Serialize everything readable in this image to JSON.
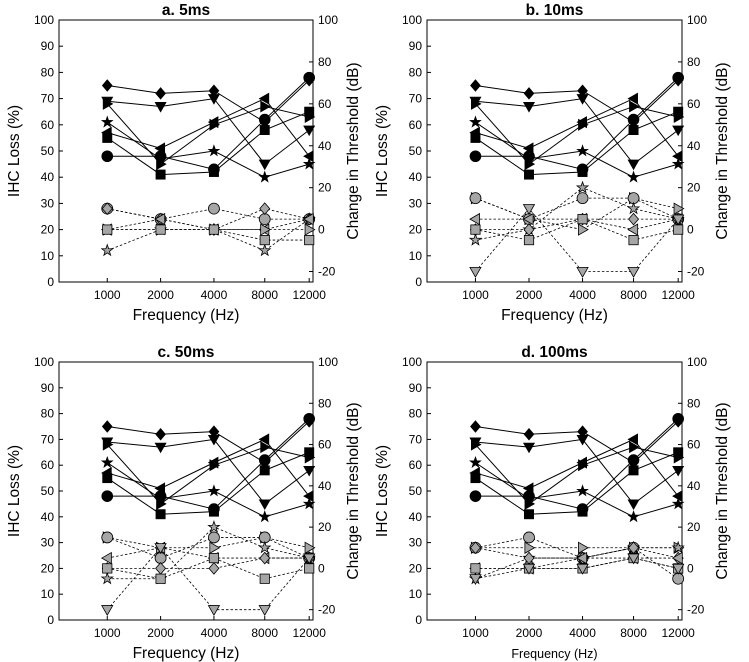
{
  "figure": {
    "y_ticks": [
      "0",
      "10",
      "20",
      "30",
      "40",
      "50",
      "60",
      "70",
      "80",
      "90",
      "100"
    ],
    "y2_ticks": [
      "-20",
      "0",
      "20",
      "40",
      "60",
      "80",
      "100"
    ],
    "x_ticks": [
      "1000",
      "2000",
      "4000",
      "8000",
      "12000"
    ],
    "y_label": "IHC Loss (%)",
    "y2_label": "Change in Threshold (dB)",
    "x_label": "Frequency (Hz)"
  },
  "chart_data": [
    {
      "type": "line",
      "title": "a. 5ms",
      "xlabel": "Frequency (Hz)",
      "ylabel": "IHC Loss (%)",
      "y2label": "Change in Threshold (dB)",
      "categories": [
        1000,
        2000,
        4000,
        8000,
        12000
      ],
      "ylim": [
        0,
        100
      ],
      "y2lim": [
        -25,
        100
      ],
      "series": [
        {
          "axis": "left",
          "marker": "diamond",
          "values": [
            75,
            72,
            73,
            61,
            77
          ]
        },
        {
          "axis": "left",
          "marker": "triangle-down",
          "values": [
            69,
            67,
            70,
            45,
            58
          ]
        },
        {
          "axis": "left",
          "marker": "star",
          "values": [
            61,
            47,
            50,
            40,
            45
          ]
        },
        {
          "axis": "left",
          "marker": "triangle-left",
          "values": [
            57,
            51,
            61,
            70,
            48
          ]
        },
        {
          "axis": "left",
          "marker": "circle",
          "values": [
            48,
            48,
            43,
            62,
            78
          ]
        },
        {
          "axis": "left",
          "marker": "square",
          "values": [
            55,
            41,
            42,
            58,
            65
          ]
        },
        {
          "axis": "left",
          "marker": "triangle-right",
          "values": [
            68,
            45,
            60,
            67,
            63
          ]
        },
        {
          "axis": "right",
          "marker": "circle",
          "values": [
            10,
            5,
            10,
            5,
            5
          ]
        },
        {
          "axis": "right",
          "marker": "diamond",
          "values": [
            10,
            5,
            0,
            10,
            5
          ]
        },
        {
          "axis": "right",
          "marker": "star",
          "values": [
            -10,
            0,
            0,
            -10,
            5
          ]
        },
        {
          "axis": "right",
          "marker": "triangle-left",
          "values": [
            0,
            5,
            0,
            0,
            5
          ]
        },
        {
          "axis": "right",
          "marker": "triangle-right",
          "values": [
            0,
            0,
            0,
            0,
            0
          ]
        },
        {
          "axis": "right",
          "marker": "square",
          "values": [
            0,
            0,
            0,
            -5,
            -5
          ]
        }
      ]
    },
    {
      "type": "line",
      "title": "b. 10ms",
      "xlabel": "Frequency (Hz)",
      "ylabel": "IHC Loss (%)",
      "y2label": "Change in Threshold (dB)",
      "categories": [
        1000,
        2000,
        4000,
        8000,
        12000
      ],
      "ylim": [
        0,
        100
      ],
      "y2lim": [
        -25,
        100
      ],
      "series": [
        {
          "axis": "left",
          "marker": "diamond",
          "values": [
            75,
            72,
            73,
            61,
            77
          ]
        },
        {
          "axis": "left",
          "marker": "triangle-down",
          "values": [
            69,
            67,
            70,
            45,
            58
          ]
        },
        {
          "axis": "left",
          "marker": "star",
          "values": [
            61,
            47,
            50,
            40,
            45
          ]
        },
        {
          "axis": "left",
          "marker": "triangle-left",
          "values": [
            57,
            51,
            61,
            70,
            48
          ]
        },
        {
          "axis": "left",
          "marker": "circle",
          "values": [
            48,
            48,
            43,
            62,
            78
          ]
        },
        {
          "axis": "left",
          "marker": "square",
          "values": [
            55,
            41,
            42,
            58,
            65
          ]
        },
        {
          "axis": "left",
          "marker": "triangle-right",
          "values": [
            68,
            45,
            60,
            67,
            63
          ]
        },
        {
          "axis": "right",
          "marker": "triangle-right",
          "values": [
            15,
            5,
            0,
            15,
            10
          ]
        },
        {
          "axis": "right",
          "marker": "circle",
          "values": [
            15,
            5,
            15,
            15,
            5
          ]
        },
        {
          "axis": "right",
          "marker": "star",
          "values": [
            -5,
            0,
            20,
            10,
            5
          ]
        },
        {
          "axis": "right",
          "marker": "triangle-left",
          "values": [
            5,
            5,
            5,
            0,
            5
          ]
        },
        {
          "axis": "right",
          "marker": "diamond",
          "values": [
            0,
            0,
            5,
            5,
            5
          ]
        },
        {
          "axis": "right",
          "marker": "square",
          "values": [
            0,
            -5,
            5,
            -5,
            0
          ]
        },
        {
          "axis": "right",
          "marker": "triangle-down",
          "values": [
            -20,
            10,
            -20,
            -20,
            5
          ]
        }
      ]
    },
    {
      "type": "line",
      "title": "c. 50ms",
      "xlabel": "Frequency (Hz)",
      "ylabel": "IHC Loss (%)",
      "y2label": "Change in Threshold (dB)",
      "categories": [
        1000,
        2000,
        4000,
        8000,
        12000
      ],
      "ylim": [
        0,
        100
      ],
      "y2lim": [
        -25,
        100
      ],
      "series": [
        {
          "axis": "left",
          "marker": "diamond",
          "values": [
            75,
            72,
            73,
            61,
            77
          ]
        },
        {
          "axis": "left",
          "marker": "triangle-down",
          "values": [
            69,
            67,
            70,
            45,
            58
          ]
        },
        {
          "axis": "left",
          "marker": "star",
          "values": [
            61,
            47,
            50,
            40,
            45
          ]
        },
        {
          "axis": "left",
          "marker": "triangle-left",
          "values": [
            57,
            51,
            61,
            70,
            48
          ]
        },
        {
          "axis": "left",
          "marker": "circle",
          "values": [
            48,
            48,
            43,
            62,
            78
          ]
        },
        {
          "axis": "left",
          "marker": "square",
          "values": [
            55,
            41,
            42,
            58,
            65
          ]
        },
        {
          "axis": "left",
          "marker": "triangle-right",
          "values": [
            68,
            45,
            60,
            67,
            63
          ]
        },
        {
          "axis": "right",
          "marker": "triangle-right",
          "values": [
            15,
            10,
            10,
            15,
            10
          ]
        },
        {
          "axis": "right",
          "marker": "circle",
          "values": [
            15,
            5,
            15,
            15,
            5
          ]
        },
        {
          "axis": "right",
          "marker": "star",
          "values": [
            -5,
            -5,
            20,
            10,
            5
          ]
        },
        {
          "axis": "right",
          "marker": "triangle-left",
          "values": [
            5,
            10,
            5,
            5,
            5
          ]
        },
        {
          "axis": "right",
          "marker": "diamond",
          "values": [
            0,
            0,
            0,
            5,
            5
          ]
        },
        {
          "axis": "right",
          "marker": "square",
          "values": [
            0,
            -5,
            5,
            -5,
            0
          ]
        },
        {
          "axis": "right",
          "marker": "triangle-down",
          "values": [
            -20,
            10,
            -20,
            -20,
            5
          ]
        }
      ]
    },
    {
      "type": "line",
      "title": "d. 100ms",
      "xlabel": "Frequency (Hz)",
      "ylabel": "IHC Loss (%)",
      "y2label": "Change in Threshold (dB)",
      "categories": [
        1000,
        2000,
        4000,
        8000,
        12000
      ],
      "ylim": [
        0,
        100
      ],
      "y2lim": [
        -25,
        100
      ],
      "series": [
        {
          "axis": "left",
          "marker": "diamond",
          "values": [
            75,
            72,
            73,
            61,
            77
          ]
        },
        {
          "axis": "left",
          "marker": "triangle-down",
          "values": [
            69,
            67,
            70,
            45,
            58
          ]
        },
        {
          "axis": "left",
          "marker": "star",
          "values": [
            61,
            47,
            50,
            40,
            45
          ]
        },
        {
          "axis": "left",
          "marker": "triangle-left",
          "values": [
            57,
            51,
            61,
            70,
            48
          ]
        },
        {
          "axis": "left",
          "marker": "circle",
          "values": [
            48,
            48,
            43,
            62,
            78
          ]
        },
        {
          "axis": "left",
          "marker": "square",
          "values": [
            55,
            41,
            42,
            58,
            65
          ]
        },
        {
          "axis": "left",
          "marker": "triangle-right",
          "values": [
            68,
            45,
            60,
            67,
            63
          ]
        },
        {
          "axis": "right",
          "marker": "triangle-right",
          "values": [
            10,
            10,
            10,
            10,
            10
          ]
        },
        {
          "axis": "right",
          "marker": "circle",
          "values": [
            10,
            15,
            5,
            10,
            -5
          ]
        },
        {
          "axis": "right",
          "marker": "star",
          "values": [
            -5,
            5,
            5,
            10,
            10
          ]
        },
        {
          "axis": "right",
          "marker": "diamond",
          "values": [
            10,
            5,
            5,
            10,
            5
          ]
        },
        {
          "axis": "right",
          "marker": "triangle-left",
          "values": [
            0,
            0,
            5,
            5,
            5
          ]
        },
        {
          "axis": "right",
          "marker": "square",
          "values": [
            0,
            0,
            0,
            5,
            0
          ]
        },
        {
          "axis": "right",
          "marker": "triangle-down",
          "values": [
            -5,
            0,
            0,
            5,
            0
          ]
        }
      ]
    }
  ]
}
